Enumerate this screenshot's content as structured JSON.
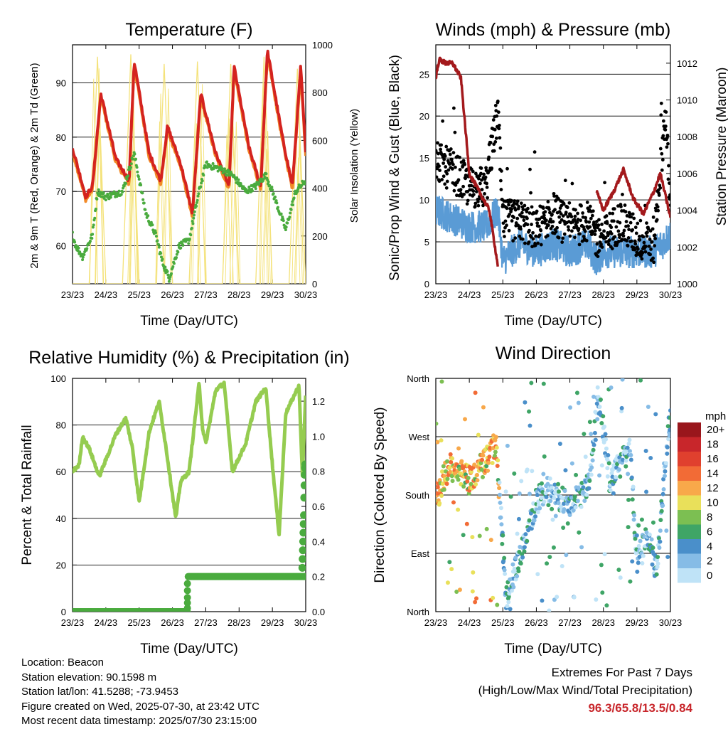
{
  "x_ticks": [
    "23/23",
    "24/23",
    "25/23",
    "26/23",
    "27/23",
    "28/23",
    "29/23",
    "30/23"
  ],
  "panels": {
    "temperature": {
      "title": "Temperature (F)",
      "xlabel": "Time (Day/UTC)",
      "ylabel_left": "2m & 9m T (Red, Orange) & 2m Td (Green)",
      "ylabel_right": "Solar Insolation (Yellow)",
      "yticks_left": [
        "60",
        "70",
        "80",
        "90"
      ],
      "yticks_right": [
        "0",
        "200",
        "400",
        "600",
        "800",
        "1000"
      ]
    },
    "winds": {
      "title": "Winds (mph) & Pressure (mb)",
      "xlabel": "Time (Day/UTC)",
      "ylabel_left": "Sonic/Prop Wind & Gust (Blue, Black)",
      "ylabel_right": "Station Pressure (Maroon)",
      "yticks_left": [
        "0",
        "5",
        "10",
        "15",
        "20",
        "25"
      ],
      "yticks_right": [
        "1000",
        "1002",
        "1004",
        "1006",
        "1008",
        "1010",
        "1012"
      ]
    },
    "humidity": {
      "title": "Relative Humidity (%) & Precipitation (in)",
      "xlabel": "Time (Day/UTC)",
      "ylabel_left": "Percent & Total Rainfall",
      "yticks_left": [
        "0",
        "20",
        "40",
        "60",
        "80",
        "100"
      ],
      "yticks_right": [
        "0.0",
        "0.2",
        "0.4",
        "0.6",
        "0.8",
        "1.0",
        "1.2"
      ]
    },
    "direction": {
      "title": "Wind Direction",
      "xlabel": "Time (Day/UTC)",
      "ylabel_left": "Direction (Colored By Speed)",
      "yticks_left": [
        "North",
        "East",
        "South",
        "West",
        "North"
      ],
      "legend_title": "mph",
      "legend_labels": [
        "20+",
        "18",
        "16",
        "14",
        "12",
        "10",
        "8",
        "6",
        "4",
        "2",
        "0"
      ],
      "legend_colors": [
        "#99161c",
        "#c8262b",
        "#e0402e",
        "#f26b36",
        "#f8a84a",
        "#e9e05a",
        "#7cbf52",
        "#3fa566",
        "#4a8fca",
        "#86bce6",
        "#bfe3f7"
      ]
    }
  },
  "colors": {
    "temp_2m": "#d4231f",
    "temp_9m": "#f28a27",
    "dewpoint": "#4aab3e",
    "solar": "#f4e27a",
    "wind": "#5a9bd5",
    "gust": "#000000",
    "pressure": "#a3191c",
    "rh": "#95cc50",
    "precip": "#4aab3e"
  },
  "info": {
    "location": "Location: Beacon",
    "elevation": "Station elevation: 90.1598 m",
    "latlon": "Station lat/lon: 41.5288; -73.9453",
    "created": "Figure created on Wed, 2025-07-30, at 23:42 UTC",
    "recent": "Most recent data timestamp: 2025/07/30 23:15:00"
  },
  "extremes": {
    "line1": "Extremes For Past 7 Days",
    "line2": "(High/Low/Max Wind/Total Precipitation)",
    "values": "96.3/65.8/13.5/0.84"
  },
  "chart_data": [
    {
      "type": "line",
      "title": "Temperature (F)",
      "xlabel": "Time (Day/UTC)",
      "ylabel": "2m & 9m T (Red, Orange) & 2m Td (Green)",
      "y2label": "Solar Insolation (Yellow)",
      "ylim": [
        53,
        97
      ],
      "y2lim": [
        0,
        1000
      ],
      "xlim": [
        23,
        30
      ],
      "series": [
        {
          "name": "2m T",
          "x": [
            23,
            23.4,
            23.6,
            23.85,
            24.3,
            24.7,
            24.85,
            25.3,
            25.65,
            25.85,
            26.25,
            26.6,
            26.85,
            27.3,
            27.7,
            27.85,
            28.3,
            28.65,
            28.85,
            29.3,
            29.6,
            29.85,
            30
          ],
          "y": [
            78,
            69,
            71,
            88,
            76,
            72,
            94,
            77,
            72,
            82,
            75,
            66,
            88,
            77,
            71,
            93,
            78,
            71,
            96,
            80,
            71,
            93,
            77
          ]
        },
        {
          "name": "2m Td",
          "x": [
            23,
            23.1,
            23.3,
            23.6,
            23.75,
            24,
            24.5,
            24.85,
            25.2,
            25.5,
            25.7,
            25.9,
            26.2,
            26.5,
            26.8,
            27,
            27.5,
            27.8,
            28.2,
            28.5,
            28.8,
            29,
            29.4,
            29.7,
            30
          ],
          "y": [
            62,
            60,
            58,
            62,
            70,
            69,
            70,
            77,
            66,
            62,
            57,
            54,
            60,
            61,
            70,
            75,
            74,
            73,
            70,
            71,
            73,
            70,
            63,
            70,
            72
          ]
        },
        {
          "name": "Solar Insolation",
          "x": [
            23.0,
            23.25,
            23.5,
            23.75,
            24.0,
            24.25,
            24.5,
            24.75,
            25.0,
            25.25,
            25.5,
            25.75,
            26.0,
            26.25,
            26.5,
            26.75,
            27.0,
            27.25,
            27.5,
            27.75,
            28.0,
            28.25,
            28.5,
            28.75,
            29.0,
            29.25,
            29.5,
            29.75,
            30.0
          ],
          "y": [
            0,
            0,
            0,
            950,
            0,
            0,
            0,
            960,
            0,
            0,
            0,
            920,
            0,
            0,
            0,
            930,
            0,
            0,
            0,
            920,
            0,
            0,
            0,
            950,
            0,
            0,
            0,
            900,
            0
          ]
        }
      ]
    },
    {
      "type": "line",
      "title": "Winds (mph) & Pressure (mb)",
      "xlabel": "Time (Day/UTC)",
      "ylabel": "Sonic/Prop Wind & Gust (Blue, Black)",
      "y2label": "Station Pressure (Maroon)",
      "ylim": [
        0,
        28.5
      ],
      "y2lim": [
        1000,
        1013
      ],
      "xlim": [
        23,
        30
      ],
      "series": [
        {
          "name": "Wind",
          "x": [
            23,
            23.5,
            24,
            24.5,
            24.85,
            25,
            25.5,
            26,
            26.5,
            27,
            27.5,
            27.8,
            28,
            28.5,
            29,
            29.5,
            30
          ],
          "y": [
            8,
            7,
            6,
            6,
            8,
            2,
            4,
            3,
            4,
            3,
            4,
            2,
            3,
            3,
            3,
            3,
            5
          ]
        },
        {
          "name": "Gust",
          "x": [
            23,
            23.5,
            24,
            24.5,
            24.85,
            25,
            25.5,
            26,
            26.5,
            27,
            27.5,
            27.8,
            28,
            28.5,
            29,
            29.5,
            29.85,
            30
          ],
          "y": [
            14,
            13,
            11,
            11,
            20,
            7,
            7,
            6,
            8,
            6,
            7,
            5,
            5,
            7,
            5,
            4,
            20,
            8
          ]
        },
        {
          "name": "Station Pressure",
          "x": [
            23,
            23.1,
            23.3,
            23.5,
            23.75,
            24,
            24.3,
            24.6,
            24.85,
            27.8,
            28,
            28.3,
            28.6,
            28.9,
            29.2,
            29.5,
            29.7,
            30
          ],
          "y": [
            1011.2,
            1012.2,
            1012.0,
            1012.0,
            1011.2,
            1006.0,
            1005.0,
            1004.0,
            1001.0,
            1005.0,
            1004.0,
            1005.0,
            1006.2,
            1004.6,
            1003.8,
            1005.0,
            1006.0,
            1003.6
          ]
        }
      ]
    },
    {
      "type": "line",
      "title": "Relative Humidity (%) & Precipitation (in)",
      "xlabel": "Time (Day/UTC)",
      "ylabel": "Percent & Total Rainfall",
      "ylim": [
        0,
        100
      ],
      "y2lim": [
        0,
        1.33
      ],
      "xlim": [
        23,
        30
      ],
      "series": [
        {
          "name": "Relative Humidity",
          "x": [
            23,
            23.2,
            23.3,
            23.5,
            23.8,
            24,
            24.3,
            24.6,
            24.8,
            25,
            25.3,
            25.6,
            25.8,
            26.1,
            26.25,
            26.5,
            26.8,
            26.9,
            27,
            27.3,
            27.55,
            27.8,
            28.2,
            28.5,
            28.8,
            29,
            29.2,
            29.4,
            29.8,
            29.9,
            30
          ],
          "y": [
            60,
            63,
            75,
            70,
            58,
            65,
            76,
            83,
            70,
            47,
            77,
            90,
            71,
            40,
            56,
            60,
            98,
            79,
            72,
            95,
            98,
            60,
            72,
            90,
            96,
            63,
            33,
            85,
            97,
            58,
            93
          ]
        },
        {
          "name": "Total Precipitation",
          "x": [
            23,
            26.4,
            26.5,
            29.8,
            29.85,
            29.9,
            29.95,
            30
          ],
          "y": [
            0,
            0,
            0.2,
            0.2,
            0.35,
            0.5,
            0.7,
            0.84
          ]
        }
      ]
    },
    {
      "type": "scatter",
      "title": "Wind Direction",
      "xlabel": "Time (Day/UTC)",
      "ylabel": "Direction (Colored By Speed)",
      "ylim": [
        0,
        360
      ],
      "xlim": [
        23,
        30
      ],
      "yticks": [
        "North",
        "East",
        "South",
        "West",
        "North"
      ],
      "color_scale_mph": [
        0,
        2,
        4,
        6,
        8,
        10,
        12,
        14,
        16,
        18,
        20
      ],
      "series": [
        {
          "name": "Direction",
          "x": [
            23,
            23.3,
            23.5,
            23.7,
            24,
            24.3,
            24.6,
            24.8,
            25.1,
            25.4,
            25.7,
            26,
            26.3,
            26.6,
            27,
            27.3,
            27.6,
            27.85,
            28.2,
            28.5,
            28.8,
            29,
            29.3,
            29.6,
            29.85,
            30
          ],
          "y": [
            170,
            215,
            230,
            210,
            205,
            220,
            240,
            260,
            20,
            70,
            120,
            170,
            190,
            180,
            165,
            175,
            200,
            340,
            200,
            230,
            250,
            80,
            120,
            60,
            240,
            300
          ]
        }
      ]
    }
  ]
}
